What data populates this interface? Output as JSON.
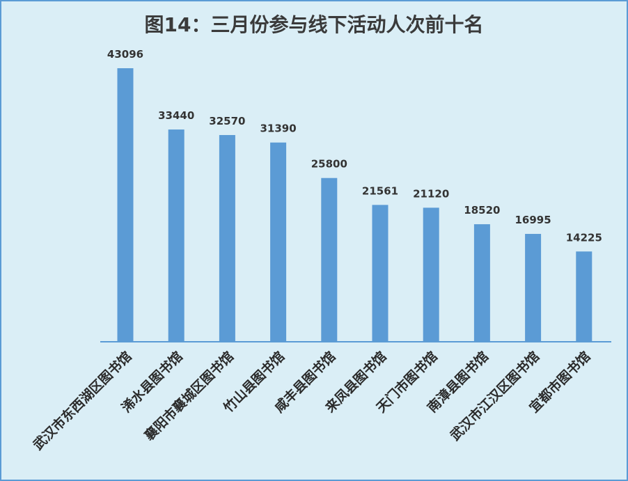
{
  "chart_data": {
    "type": "bar",
    "title": "图14：三月份参与线下活动人次前十名",
    "categories": [
      "武汉市东西湖区图书馆",
      "浠水县图书馆",
      "襄阳市襄城区图书馆",
      "竹山县图书馆",
      "咸丰县图书馆",
      "来凤县图书馆",
      "天门市图书馆",
      "南漳县图书馆",
      "武汉市江汉区图书馆",
      "宜都市图书馆"
    ],
    "values": [
      43096,
      33440,
      32570,
      31390,
      25800,
      21561,
      21120,
      18520,
      16995,
      14225
    ],
    "xlabel": "",
    "ylabel": "",
    "ylim": [
      0,
      43096
    ],
    "grid": false,
    "legend": "none",
    "bar_color": "#5b9bd5",
    "axis_color": "#5b9bd5"
  }
}
